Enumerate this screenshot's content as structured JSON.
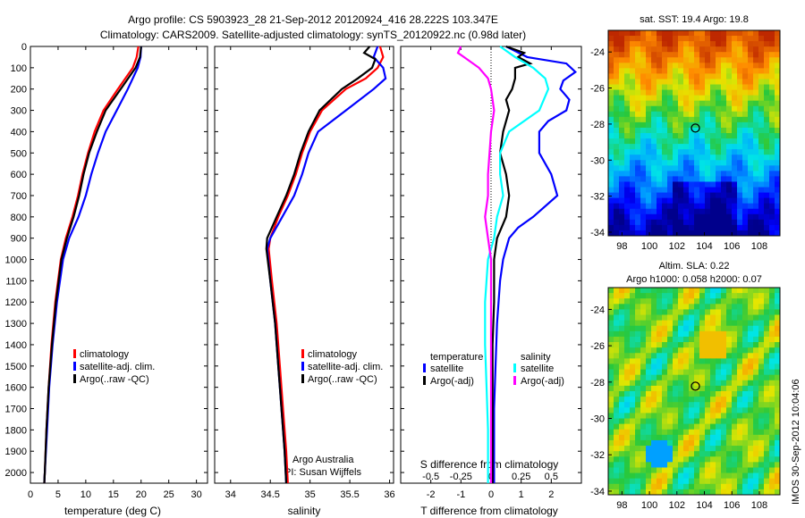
{
  "header": {
    "title_line1": "Argo profile: CS 5903923_28 21-Sep-2012 20120924_416 28.222S 103.347E",
    "title_line2": "Climatology: CARS2009. Satellite-adjusted climatology: synTS_20120922.nc (0.98d later)"
  },
  "side_text": "IMOS 30-Sep-2012 10:04:06",
  "colors": {
    "climatology": "#ff0000",
    "satellite": "#0000ff",
    "argo": "#000000",
    "sat_salinity": "#00ffff",
    "argo_salinity": "#ff00ff"
  },
  "depth_ticks": [
    0,
    100,
    200,
    300,
    400,
    500,
    600,
    700,
    800,
    900,
    1000,
    1100,
    1200,
    1300,
    1400,
    1500,
    1600,
    1700,
    1800,
    1900,
    2000
  ],
  "chart_data": [
    {
      "type": "line",
      "xlabel": "temperature (deg C)",
      "xlim": [
        0,
        32
      ],
      "ylim": [
        2050,
        0
      ],
      "xticks": [
        "0",
        "5",
        "10",
        "15",
        "20",
        "25",
        "30"
      ],
      "xtick_values": [
        0,
        5,
        10,
        15,
        20,
        25,
        30
      ],
      "legend": [
        "climatology",
        "satellite-adj. clim.",
        "Argo(..raw -QC)"
      ],
      "series": [
        {
          "name": "climatology",
          "color": "#ff0000",
          "depth": [
            0,
            50,
            100,
            200,
            300,
            400,
            500,
            600,
            700,
            800,
            900,
            1000,
            1200,
            1400,
            1600,
            1800,
            2000,
            2050
          ],
          "values": [
            19.5,
            19.2,
            18.5,
            15.8,
            13.2,
            11.6,
            10.4,
            9.4,
            8.6,
            7.6,
            6.4,
            5.5,
            4.5,
            3.8,
            3.3,
            2.9,
            2.6,
            2.5
          ]
        },
        {
          "name": "satellite-adj. clim.",
          "color": "#0000ff",
          "depth": [
            0,
            50,
            100,
            200,
            300,
            400,
            500,
            600,
            700,
            800,
            900,
            1000,
            1200,
            1400,
            1600,
            1800,
            2000,
            2050
          ],
          "values": [
            20.0,
            19.9,
            19.4,
            17.6,
            15.6,
            13.6,
            12.2,
            11.0,
            10.0,
            8.7,
            7.0,
            5.9,
            4.8,
            4.0,
            3.4,
            3.0,
            2.6,
            2.5
          ]
        },
        {
          "name": "Argo(..raw -QC)",
          "color": "#000000",
          "depth": [
            0,
            50,
            100,
            200,
            300,
            400,
            500,
            600,
            700,
            800,
            900,
            1000,
            1200,
            1400,
            1600,
            1800,
            2000,
            2050
          ],
          "values": [
            20.0,
            19.8,
            19.0,
            16.3,
            13.6,
            12.0,
            10.6,
            9.6,
            8.8,
            7.8,
            6.6,
            5.6,
            4.6,
            3.9,
            3.3,
            2.9,
            2.6,
            2.5
          ]
        }
      ]
    },
    {
      "type": "line",
      "xlabel": "salinity",
      "xlim": [
        33.8,
        36.05
      ],
      "ylim": [
        2050,
        0
      ],
      "xticks": [
        "34",
        "34.5",
        "35",
        "35.5",
        "36"
      ],
      "xtick_values": [
        34,
        34.5,
        35,
        35.5,
        36
      ],
      "legend": [
        "climatology",
        "satellite-adj. clim.",
        "Argo(..raw -QC)"
      ],
      "annotation": [
        "Argo Australia",
        "PI: Susan Wijffels"
      ],
      "series": [
        {
          "name": "climatology",
          "color": "#ff0000",
          "depth": [
            0,
            50,
            100,
            150,
            200,
            300,
            400,
            500,
            600,
            700,
            800,
            900,
            950,
            1100,
            1300,
            1500,
            1700,
            1900,
            2050
          ],
          "values": [
            35.88,
            35.92,
            35.85,
            35.7,
            35.45,
            35.15,
            35.0,
            34.9,
            34.82,
            34.72,
            34.6,
            34.5,
            34.48,
            34.52,
            34.58,
            34.62,
            34.66,
            34.7,
            34.72
          ]
        },
        {
          "name": "satellite-adj. clim.",
          "color": "#0000ff",
          "depth": [
            0,
            50,
            100,
            150,
            200,
            300,
            400,
            500,
            600,
            700,
            800,
            900,
            950,
            1100,
            1300,
            1500,
            1700,
            1900,
            2050
          ],
          "values": [
            35.85,
            35.8,
            35.92,
            35.95,
            35.8,
            35.45,
            35.1,
            34.98,
            34.9,
            34.8,
            34.65,
            34.5,
            34.46,
            34.5,
            34.56,
            34.6,
            34.64,
            34.68,
            34.7
          ]
        },
        {
          "name": "Argo(..raw -QC)",
          "color": "#000000",
          "depth": [
            0,
            30,
            60,
            100,
            150,
            200,
            300,
            400,
            500,
            600,
            700,
            800,
            900,
            950,
            1100,
            1300,
            1500,
            1700,
            1900,
            2050
          ],
          "values": [
            35.75,
            35.68,
            35.82,
            35.78,
            35.6,
            35.4,
            35.12,
            34.98,
            34.88,
            34.8,
            34.7,
            34.58,
            34.46,
            34.45,
            34.5,
            34.56,
            34.6,
            34.64,
            34.68,
            34.7
          ]
        }
      ]
    },
    {
      "type": "line",
      "xlabel": "T difference from climatology",
      "xlabel_top": "S difference from climatology",
      "xlim": [
        -3,
        3
      ],
      "ylim": [
        2050,
        0
      ],
      "xticks": [
        "-2",
        "-1",
        "0",
        "1",
        "2"
      ],
      "xtick_values": [
        -2,
        -1,
        0,
        1,
        2
      ],
      "xticks_top": [
        "-0.5",
        "-0.25",
        "0",
        "0.25",
        "0.5"
      ],
      "xtick_top_values": [
        -2,
        -1,
        0,
        1,
        2
      ],
      "legend_temperature": {
        "title": "temperature",
        "items": [
          "satellite",
          "Argo(-adj)"
        ]
      },
      "legend_salinity": {
        "title": "salinity",
        "items": [
          "satellite",
          "Argo(-adj)"
        ]
      },
      "series": [
        {
          "name": "temperature satellite",
          "color": "#0000ff",
          "depth": [
            0,
            50,
            80,
            120,
            160,
            200,
            250,
            300,
            350,
            400,
            500,
            600,
            700,
            800,
            850,
            900,
            1000,
            1100,
            1300,
            1500,
            1700,
            1900,
            2050
          ],
          "values": [
            0.5,
            1.2,
            2.5,
            2.8,
            2.4,
            2.3,
            2.6,
            2.5,
            1.9,
            1.6,
            1.6,
            2.0,
            2.2,
            1.4,
            0.9,
            0.6,
            0.4,
            0.3,
            0.2,
            0.15,
            0.1,
            0.1,
            0.1
          ]
        },
        {
          "name": "temperature Argo(-adj)",
          "color": "#000000",
          "depth": [
            0,
            30,
            50,
            80,
            100,
            150,
            200,
            250,
            300,
            400,
            500,
            600,
            700,
            800,
            900,
            1000,
            1200,
            1400,
            1600,
            1800,
            2050
          ],
          "values": [
            0.5,
            1.1,
            0.9,
            1.3,
            0.8,
            0.8,
            0.7,
            0.5,
            0.6,
            0.4,
            0.3,
            0.5,
            0.6,
            0.5,
            0.2,
            0.1,
            0.1,
            0.05,
            0.05,
            0.05,
            0.05
          ]
        },
        {
          "name": "salinity satellite",
          "color": "#00ffff",
          "depth": [
            0,
            50,
            100,
            150,
            200,
            300,
            400,
            500,
            600,
            700,
            800,
            900,
            1000,
            1200,
            1400,
            1600,
            1800,
            2050
          ],
          "values": [
            0.3,
            0.8,
            1.4,
            1.8,
            1.9,
            1.6,
            0.6,
            0.3,
            0.3,
            0.4,
            0.2,
            0.1,
            -0.1,
            -0.2,
            -0.2,
            -0.15,
            -0.1,
            -0.1
          ]
        },
        {
          "name": "salinity Argo(-adj)",
          "color": "#ff00ff",
          "depth": [
            0,
            30,
            50,
            100,
            150,
            200,
            300,
            400,
            500,
            600,
            700,
            800,
            900,
            1000,
            1200,
            1400,
            1600,
            2050
          ],
          "values": [
            -1.0,
            -1.1,
            -0.9,
            -0.4,
            -0.1,
            0.0,
            0.1,
            0.0,
            -0.05,
            -0.1,
            -0.1,
            -0.2,
            -0.1,
            0.0,
            0.0,
            0.0,
            0.0,
            0.0
          ]
        }
      ]
    }
  ],
  "maps": [
    {
      "title": "sat. SST: 19.4 Argo: 19.8",
      "type": "heatmap",
      "xticks": [
        "98",
        "100",
        "102",
        "104",
        "106",
        "108"
      ],
      "xtick_values": [
        98,
        100,
        102,
        104,
        106,
        108
      ],
      "yticks": [
        "-24",
        "-26",
        "-28",
        "-30",
        "-32",
        "-34"
      ],
      "ytick_values": [
        -24,
        -26,
        -28,
        -30,
        -32,
        -34
      ],
      "xlim": [
        97,
        109.5
      ],
      "ylim": [
        -34.2,
        -22.8
      ],
      "float_lon": 103.347,
      "float_lat": -28.222
    },
    {
      "title_line1": "Altim. SLA: 0.22",
      "title_line2": "Argo h1000: 0.058 h2000: 0.07",
      "type": "heatmap",
      "xticks": [
        "98",
        "100",
        "102",
        "104",
        "106",
        "108"
      ],
      "xtick_values": [
        98,
        100,
        102,
        104,
        106,
        108
      ],
      "yticks": [
        "-24",
        "-26",
        "-28",
        "-30",
        "-32",
        "-34"
      ],
      "ytick_values": [
        -24,
        -26,
        -28,
        -30,
        -32,
        -34
      ],
      "xlim": [
        97,
        109.5
      ],
      "ylim": [
        -34.2,
        -22.8
      ],
      "float_lon": 103.347,
      "float_lat": -28.222
    }
  ]
}
